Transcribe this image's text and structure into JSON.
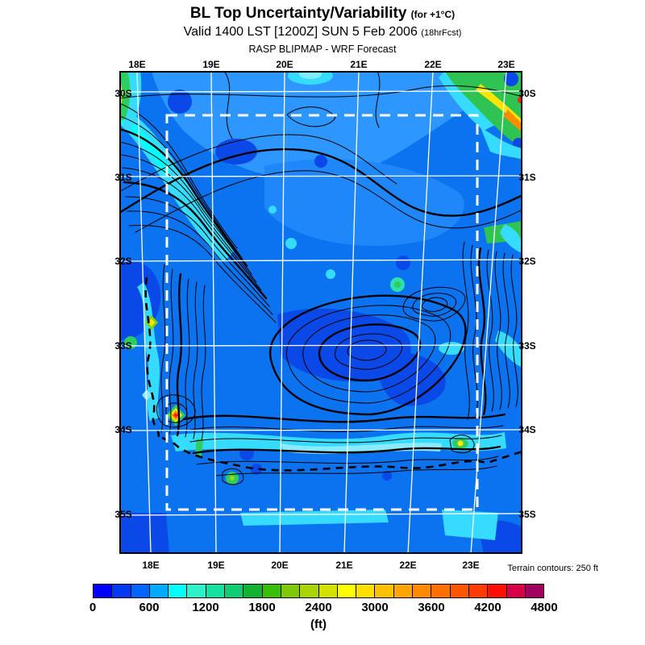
{
  "header": {
    "title": "BL Top Uncertainty/Variability",
    "title_note": "(for +1°C)",
    "valid": "Valid 1400 LST [1200Z] SUN 5 Feb 2006",
    "valid_note": "(18hrFcst)",
    "model": "RASP BLIPMAP - WRF Forecast"
  },
  "axes": {
    "top_lon": [
      "18E",
      "19E",
      "20E",
      "21E",
      "22E",
      "23E"
    ],
    "bottom_lon": [
      "18E",
      "19E",
      "20E",
      "21E",
      "22E",
      "23E"
    ],
    "left_lat": [
      "30S",
      "31S",
      "32S",
      "33S",
      "34S",
      "35S"
    ],
    "right_lat": [
      "30S",
      "31S",
      "32S",
      "33S",
      "34S",
      "35S"
    ]
  },
  "annotation": {
    "terrain": "Terrain contours: 250 ft"
  },
  "colorbar": {
    "unit": "(ft)",
    "min": 0,
    "max": 4800,
    "step_per_cell": 200,
    "ticks": [
      "0",
      "600",
      "1200",
      "1800",
      "2400",
      "3000",
      "3600",
      "4200",
      "4800"
    ],
    "colors": [
      "#0000ff",
      "#0039f2",
      "#0066ff",
      "#00aaff",
      "#00ffff",
      "#2ef2c8",
      "#16e0a0",
      "#10cc72",
      "#14b232",
      "#38bf0a",
      "#7fc908",
      "#aad505",
      "#d4e002",
      "#ffff00",
      "#ffdf00",
      "#ffc000",
      "#ffa400",
      "#ff8a00",
      "#ff7000",
      "#ff5600",
      "#ff3c00",
      "#ff1000",
      "#d80048",
      "#a2005e"
    ]
  },
  "map_colors": {
    "base_blue": "#0b72f0",
    "light_blue": "#2d96ff",
    "dark_blue": "#0a48e8",
    "cyan": "#35dcff",
    "green": "#2fcc5e",
    "yellow": "#ffe400",
    "orange": "#ff8c00",
    "red": "#ff2000"
  }
}
